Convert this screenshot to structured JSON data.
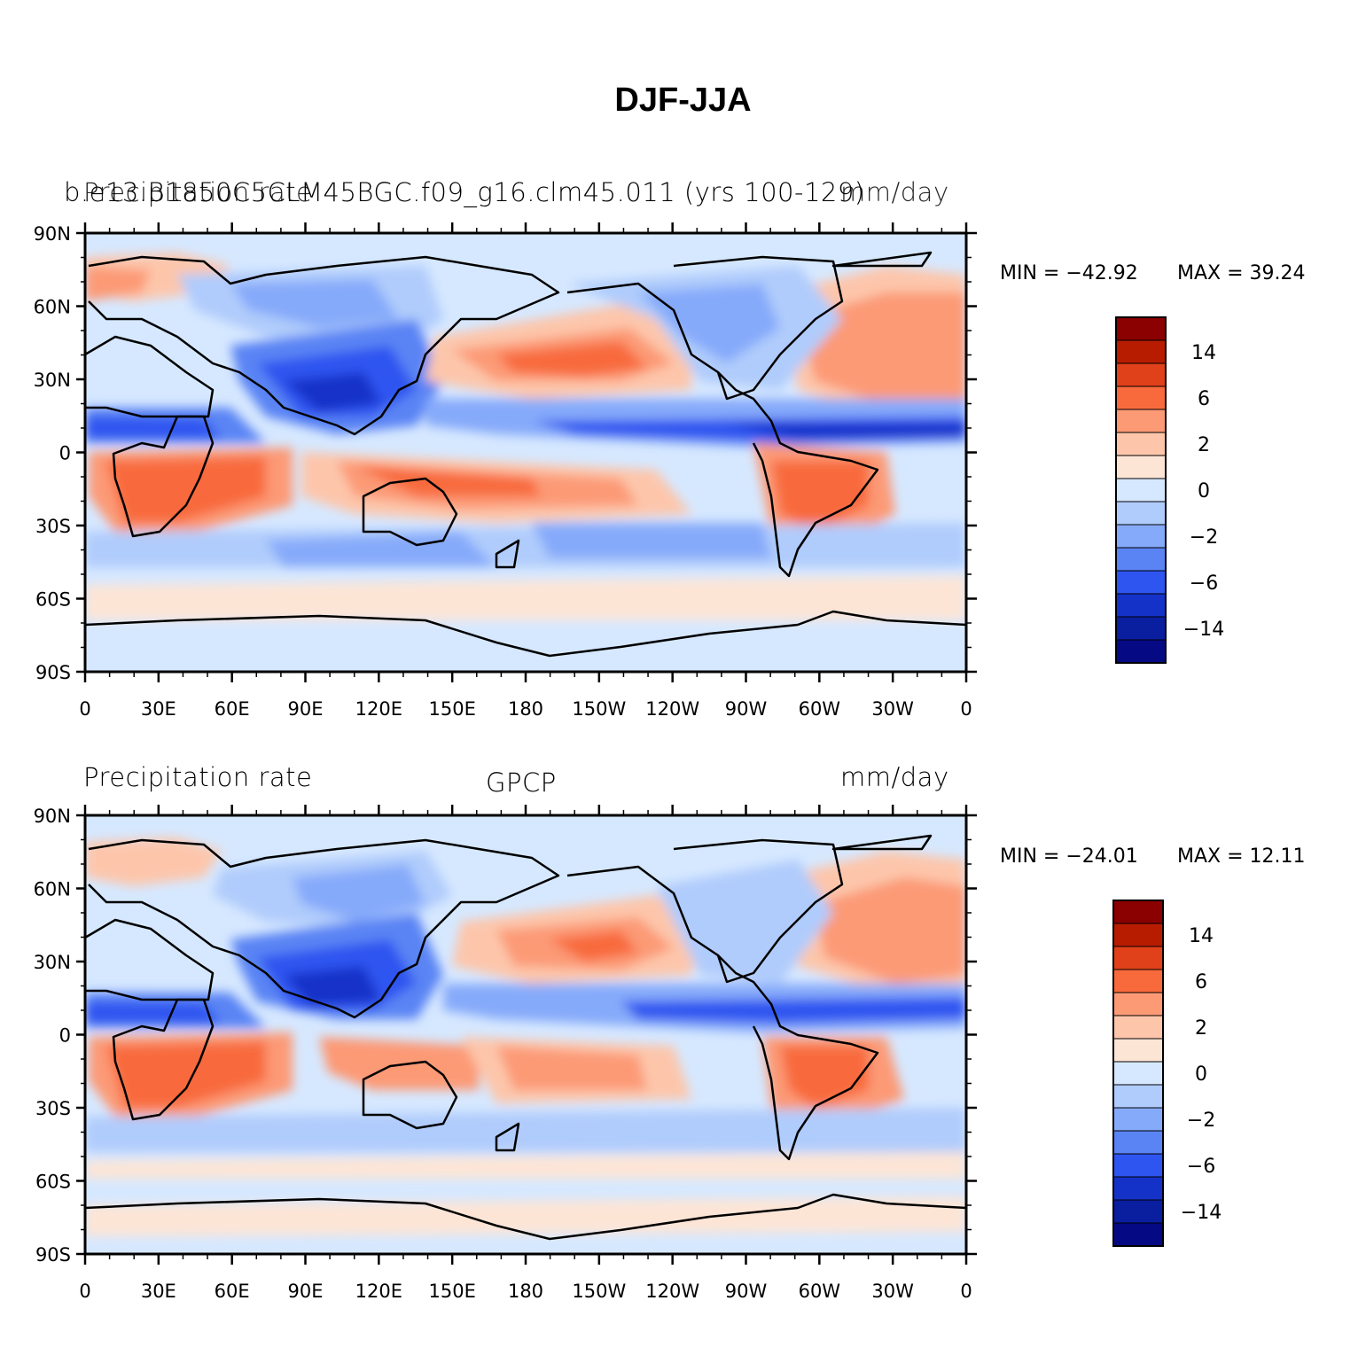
{
  "title": "DJF-JJA",
  "panels": [
    {
      "id": "model",
      "header_left": "Precipitation rate",
      "header_center": "b.e13.B1850C5CLM45BGC.f09_g16.clm45.011 (yrs 100-129)",
      "header_right": "mm/day",
      "min_label": "MIN = −42.92",
      "max_label": "MAX =   39.24"
    },
    {
      "id": "obs",
      "header_left": "Precipitation rate",
      "header_center": "GPCP",
      "header_right": "mm/day",
      "min_label": "MIN = −24.01",
      "max_label": "MAX =   12.11"
    }
  ],
  "lat_labels": [
    "90N",
    "60N",
    "30N",
    "0",
    "30S",
    "60S",
    "90S"
  ],
  "lon_labels": [
    "0",
    "30E",
    "60E",
    "90E",
    "120E",
    "150E",
    "180",
    "150W",
    "120W",
    "90W",
    "60W",
    "30W",
    "0"
  ],
  "colorbar": {
    "labels": [
      "14",
      "6",
      "2",
      "0",
      "−2",
      "−6",
      "−14"
    ],
    "colors": [
      "#8b0000",
      "#b81c00",
      "#e0401a",
      "#f86a3c",
      "#fc9a76",
      "#fdc6ab",
      "#fde5d6",
      "#d6e8ff",
      "#b0ccfc",
      "#86aafa",
      "#5a84f4",
      "#2e55f0",
      "#1532c8",
      "#0a1ea0",
      "#050a84"
    ]
  },
  "map_colors": {
    "ocean_neutral": "#d6e8ff",
    "land_outline": "#000000"
  }
}
